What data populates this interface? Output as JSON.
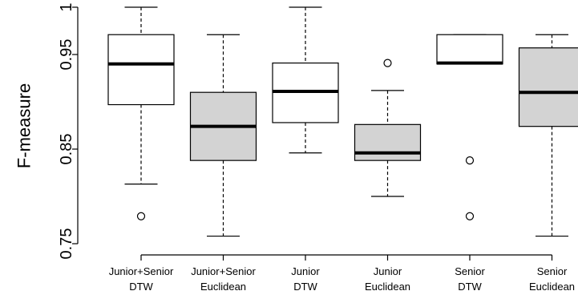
{
  "chart_data": {
    "type": "boxplot",
    "ylabel": "F-measure",
    "ylim": [
      0.75,
      1.0
    ],
    "yticks": [
      {
        "value": 0.75,
        "label": "0.75"
      },
      {
        "value": 0.85,
        "label": "0.85"
      },
      {
        "value": 0.95,
        "label": "0.95"
      },
      {
        "value": 1.0,
        "label": "1"
      }
    ],
    "grid": false,
    "legend": "none",
    "colors": {
      "white_box": "#ffffff",
      "gray_box": "#d3d3d3",
      "stroke": "#000000"
    },
    "boxes": [
      {
        "line1": "Junior+Senior",
        "line2": "DTW",
        "fill": "white",
        "whisker_low": 0.813,
        "q1": 0.897,
        "median": 0.94,
        "q3": 0.971,
        "whisker_high": 1.0,
        "outliers": [
          0.779
        ]
      },
      {
        "line1": "Junior+Senior",
        "line2": "Euclidean",
        "fill": "gray",
        "whisker_low": 0.758,
        "q1": 0.838,
        "median": 0.874,
        "q3": 0.91,
        "whisker_high": 0.971,
        "outliers": []
      },
      {
        "line1": "Junior",
        "line2": "DTW",
        "fill": "white",
        "whisker_low": 0.846,
        "q1": 0.878,
        "median": 0.911,
        "q3": 0.941,
        "whisker_high": 1.0,
        "outliers": []
      },
      {
        "line1": "Junior",
        "line2": "Euclidean",
        "fill": "gray",
        "whisker_low": 0.8,
        "q1": 0.838,
        "median": 0.846,
        "q3": 0.876,
        "whisker_high": 0.912,
        "outliers": [
          0.941
        ]
      },
      {
        "line1": "Senior",
        "line2": "DTW",
        "fill": "white",
        "whisker_low": 0.94,
        "q1": 0.94,
        "median": 0.941,
        "q3": 0.971,
        "whisker_high": 0.971,
        "outliers": [
          0.838,
          0.779
        ]
      },
      {
        "line1": "Senior",
        "line2": "Euclidean",
        "fill": "gray",
        "whisker_low": 0.758,
        "q1": 0.874,
        "median": 0.91,
        "q3": 0.957,
        "whisker_high": 0.971,
        "outliers": []
      }
    ]
  }
}
